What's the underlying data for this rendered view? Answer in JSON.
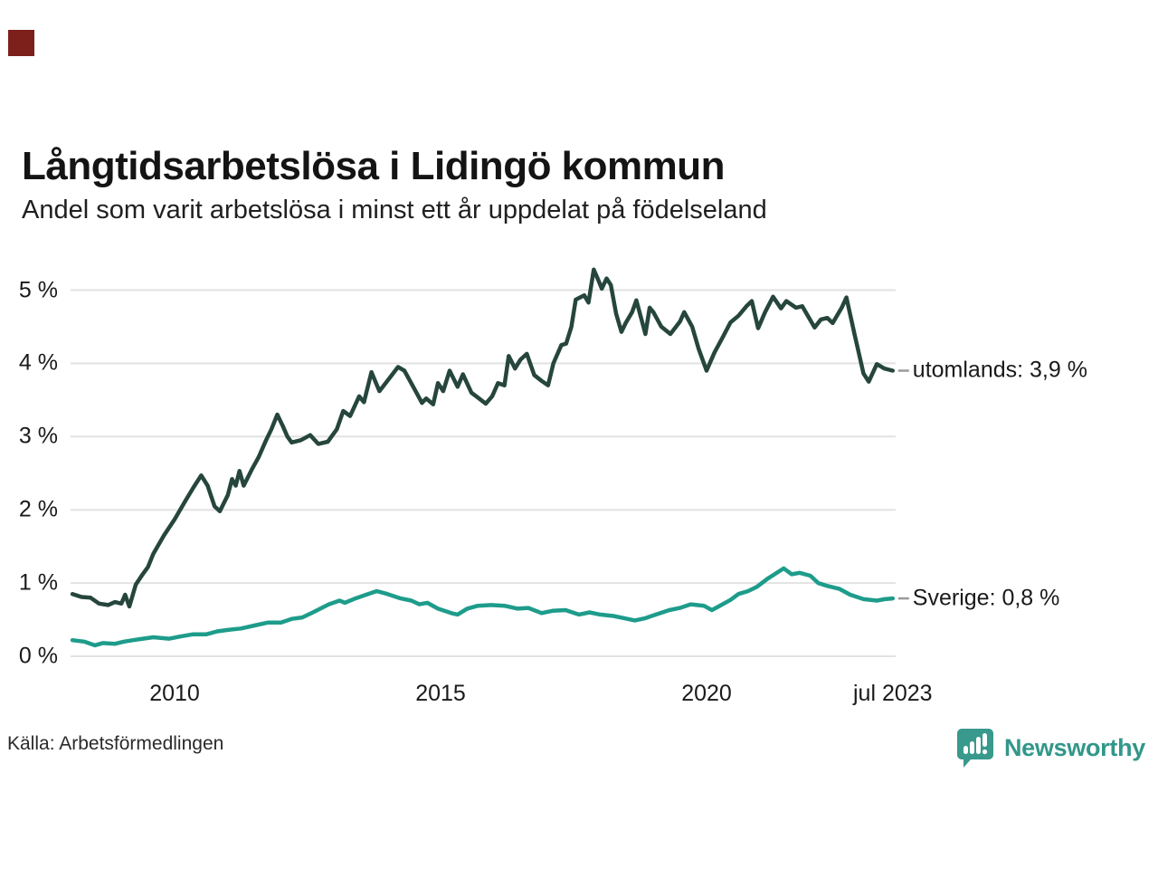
{
  "header": {
    "title": "Långtidsarbetslösa i Lidingö kommun",
    "subtitle": "Andel som varit arbetslösa i minst ett år uppdelat på födelseland"
  },
  "footer": {
    "source": "Källa: Arbetsförmedlingen",
    "brand": "Newsworthy"
  },
  "colors": {
    "utomlands_line": "#26463d",
    "sverige_line": "#1e9c8b",
    "gridline": "#e2e2e2",
    "label_dash": "#9a9a9a",
    "brand_teal": "#38998c",
    "click_marker": "#7d201b",
    "text": "#1a1a1a"
  },
  "chart_data": {
    "type": "line",
    "title": "Långtidsarbetslösa i Lidingö kommun",
    "subtitle": "Andel som varit arbetslösa i minst ett år uppdelat på födelseland",
    "xlabel": "",
    "ylabel": "",
    "xlim": [
      2008.05,
      2023.55
    ],
    "ylim": [
      0,
      5.5
    ],
    "grid": "horizontal",
    "legend_position": "end-of-line-labels",
    "x_ticks": [
      {
        "t": 2010,
        "label": "2010"
      },
      {
        "t": 2015,
        "label": "2015"
      },
      {
        "t": 2020,
        "label": "2020"
      },
      {
        "t": 2023.5,
        "label": "jul 2023"
      }
    ],
    "y_ticks": [
      {
        "v": 0,
        "label": "0 %"
      },
      {
        "v": 1,
        "label": "1 %"
      },
      {
        "v": 2,
        "label": "2 %"
      },
      {
        "v": 3,
        "label": "3 %"
      },
      {
        "v": 4,
        "label": "4 %"
      },
      {
        "v": 5,
        "label": "5 %"
      }
    ],
    "series": [
      {
        "name": "utomlands",
        "end_label": "utomlands: 3,9 %",
        "last_value": "3,9 %",
        "color": "#26463d",
        "points": [
          [
            2008.08,
            0.85
          ],
          [
            2008.25,
            0.81
          ],
          [
            2008.42,
            0.8
          ],
          [
            2008.58,
            0.72
          ],
          [
            2008.75,
            0.7
          ],
          [
            2008.88,
            0.74
          ],
          [
            2009.0,
            0.72
          ],
          [
            2009.07,
            0.84
          ],
          [
            2009.15,
            0.68
          ],
          [
            2009.27,
            0.98
          ],
          [
            2009.4,
            1.12
          ],
          [
            2009.5,
            1.22
          ],
          [
            2009.6,
            1.4
          ],
          [
            2009.8,
            1.65
          ],
          [
            2010.0,
            1.87
          ],
          [
            2010.2,
            2.12
          ],
          [
            2010.35,
            2.3
          ],
          [
            2010.5,
            2.47
          ],
          [
            2010.62,
            2.33
          ],
          [
            2010.75,
            2.05
          ],
          [
            2010.85,
            1.98
          ],
          [
            2011.0,
            2.2
          ],
          [
            2011.08,
            2.42
          ],
          [
            2011.15,
            2.33
          ],
          [
            2011.22,
            2.53
          ],
          [
            2011.3,
            2.33
          ],
          [
            2011.45,
            2.55
          ],
          [
            2011.58,
            2.72
          ],
          [
            2011.72,
            2.95
          ],
          [
            2011.82,
            3.1
          ],
          [
            2011.93,
            3.3
          ],
          [
            2012.03,
            3.15
          ],
          [
            2012.12,
            3.0
          ],
          [
            2012.2,
            2.92
          ],
          [
            2012.37,
            2.95
          ],
          [
            2012.55,
            3.02
          ],
          [
            2012.7,
            2.9
          ],
          [
            2012.88,
            2.93
          ],
          [
            2013.05,
            3.1
          ],
          [
            2013.17,
            3.35
          ],
          [
            2013.3,
            3.28
          ],
          [
            2013.47,
            3.55
          ],
          [
            2013.56,
            3.47
          ],
          [
            2013.7,
            3.88
          ],
          [
            2013.85,
            3.62
          ],
          [
            2014.0,
            3.76
          ],
          [
            2014.2,
            3.95
          ],
          [
            2014.32,
            3.9
          ],
          [
            2014.53,
            3.62
          ],
          [
            2014.65,
            3.46
          ],
          [
            2014.73,
            3.52
          ],
          [
            2014.86,
            3.44
          ],
          [
            2014.95,
            3.73
          ],
          [
            2015.05,
            3.62
          ],
          [
            2015.17,
            3.9
          ],
          [
            2015.32,
            3.68
          ],
          [
            2015.42,
            3.85
          ],
          [
            2015.58,
            3.6
          ],
          [
            2015.67,
            3.55
          ],
          [
            2015.85,
            3.45
          ],
          [
            2015.97,
            3.55
          ],
          [
            2016.08,
            3.73
          ],
          [
            2016.2,
            3.7
          ],
          [
            2016.28,
            4.1
          ],
          [
            2016.4,
            3.93
          ],
          [
            2016.5,
            4.05
          ],
          [
            2016.62,
            4.13
          ],
          [
            2016.76,
            3.84
          ],
          [
            2016.9,
            3.76
          ],
          [
            2017.02,
            3.7
          ],
          [
            2017.12,
            4.0
          ],
          [
            2017.27,
            4.25
          ],
          [
            2017.36,
            4.27
          ],
          [
            2017.46,
            4.5
          ],
          [
            2017.54,
            4.87
          ],
          [
            2017.7,
            4.93
          ],
          [
            2017.78,
            4.83
          ],
          [
            2017.88,
            5.28
          ],
          [
            2017.97,
            5.13
          ],
          [
            2018.03,
            5.02
          ],
          [
            2018.12,
            5.16
          ],
          [
            2018.2,
            5.07
          ],
          [
            2018.3,
            4.68
          ],
          [
            2018.4,
            4.43
          ],
          [
            2018.48,
            4.55
          ],
          [
            2018.6,
            4.7
          ],
          [
            2018.68,
            4.86
          ],
          [
            2018.85,
            4.4
          ],
          [
            2018.93,
            4.76
          ],
          [
            2019.0,
            4.7
          ],
          [
            2019.15,
            4.5
          ],
          [
            2019.32,
            4.4
          ],
          [
            2019.5,
            4.57
          ],
          [
            2019.58,
            4.7
          ],
          [
            2019.73,
            4.5
          ],
          [
            2019.85,
            4.2
          ],
          [
            2020.0,
            3.9
          ],
          [
            2020.15,
            4.15
          ],
          [
            2020.3,
            4.35
          ],
          [
            2020.45,
            4.56
          ],
          [
            2020.6,
            4.65
          ],
          [
            2020.75,
            4.78
          ],
          [
            2020.85,
            4.85
          ],
          [
            2020.97,
            4.48
          ],
          [
            2021.1,
            4.7
          ],
          [
            2021.25,
            4.91
          ],
          [
            2021.4,
            4.75
          ],
          [
            2021.5,
            4.85
          ],
          [
            2021.68,
            4.76
          ],
          [
            2021.8,
            4.78
          ],
          [
            2022.03,
            4.49
          ],
          [
            2022.15,
            4.6
          ],
          [
            2022.27,
            4.62
          ],
          [
            2022.37,
            4.55
          ],
          [
            2022.54,
            4.76
          ],
          [
            2022.63,
            4.9
          ],
          [
            2022.78,
            4.4
          ],
          [
            2022.95,
            3.86
          ],
          [
            2023.05,
            3.75
          ],
          [
            2023.2,
            3.99
          ],
          [
            2023.34,
            3.93
          ],
          [
            2023.5,
            3.9
          ]
        ]
      },
      {
        "name": "Sverige",
        "end_label": "Sverige: 0,8 %",
        "last_value": "0,8 %",
        "color": "#1e9c8b",
        "points": [
          [
            2008.08,
            0.22
          ],
          [
            2008.3,
            0.2
          ],
          [
            2008.5,
            0.15
          ],
          [
            2008.65,
            0.18
          ],
          [
            2008.88,
            0.17
          ],
          [
            2009.05,
            0.2
          ],
          [
            2009.22,
            0.22
          ],
          [
            2009.4,
            0.24
          ],
          [
            2009.6,
            0.26
          ],
          [
            2009.9,
            0.24
          ],
          [
            2010.1,
            0.27
          ],
          [
            2010.35,
            0.3
          ],
          [
            2010.6,
            0.3
          ],
          [
            2010.8,
            0.34
          ],
          [
            2011.0,
            0.36
          ],
          [
            2011.25,
            0.38
          ],
          [
            2011.5,
            0.42
          ],
          [
            2011.75,
            0.46
          ],
          [
            2012.0,
            0.46
          ],
          [
            2012.2,
            0.51
          ],
          [
            2012.4,
            0.53
          ],
          [
            2012.6,
            0.6
          ],
          [
            2012.9,
            0.71
          ],
          [
            2013.1,
            0.76
          ],
          [
            2013.2,
            0.73
          ],
          [
            2013.4,
            0.79
          ],
          [
            2013.6,
            0.84
          ],
          [
            2013.8,
            0.89
          ],
          [
            2014.0,
            0.85
          ],
          [
            2014.25,
            0.79
          ],
          [
            2014.45,
            0.76
          ],
          [
            2014.6,
            0.71
          ],
          [
            2014.75,
            0.73
          ],
          [
            2014.95,
            0.65
          ],
          [
            2015.2,
            0.59
          ],
          [
            2015.32,
            0.57
          ],
          [
            2015.5,
            0.65
          ],
          [
            2015.7,
            0.69
          ],
          [
            2015.95,
            0.7
          ],
          [
            2016.2,
            0.69
          ],
          [
            2016.45,
            0.65
          ],
          [
            2016.65,
            0.66
          ],
          [
            2016.9,
            0.59
          ],
          [
            2017.1,
            0.62
          ],
          [
            2017.35,
            0.63
          ],
          [
            2017.6,
            0.57
          ],
          [
            2017.8,
            0.6
          ],
          [
            2018.0,
            0.57
          ],
          [
            2018.25,
            0.55
          ],
          [
            2018.45,
            0.52
          ],
          [
            2018.65,
            0.49
          ],
          [
            2018.85,
            0.52
          ],
          [
            2019.05,
            0.57
          ],
          [
            2019.3,
            0.63
          ],
          [
            2019.5,
            0.66
          ],
          [
            2019.7,
            0.71
          ],
          [
            2019.82,
            0.7
          ],
          [
            2019.95,
            0.69
          ],
          [
            2020.1,
            0.63
          ],
          [
            2020.3,
            0.71
          ],
          [
            2020.45,
            0.77
          ],
          [
            2020.6,
            0.85
          ],
          [
            2020.78,
            0.89
          ],
          [
            2020.95,
            0.95
          ],
          [
            2021.15,
            1.06
          ],
          [
            2021.45,
            1.2
          ],
          [
            2021.6,
            1.12
          ],
          [
            2021.75,
            1.14
          ],
          [
            2021.95,
            1.1
          ],
          [
            2022.1,
            1.0
          ],
          [
            2022.27,
            0.96
          ],
          [
            2022.5,
            0.92
          ],
          [
            2022.7,
            0.84
          ],
          [
            2022.95,
            0.78
          ],
          [
            2023.2,
            0.76
          ],
          [
            2023.35,
            0.78
          ],
          [
            2023.5,
            0.79
          ]
        ]
      }
    ]
  }
}
